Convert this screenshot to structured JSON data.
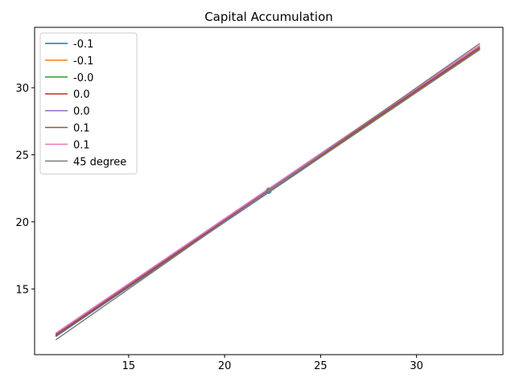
{
  "chart_data": {
    "type": "line",
    "title": "Capital Accumulation",
    "xlabel": "",
    "ylabel": "",
    "xlim": [
      10.1,
      34.5
    ],
    "ylim": [
      10.1,
      34.5
    ],
    "xticks": [
      15,
      20,
      25,
      30
    ],
    "yticks": [
      15,
      20,
      25,
      30
    ],
    "grid": false,
    "legend_position": "upper left",
    "series": [
      {
        "name": "-0.1",
        "color": "#1f77b4",
        "x": [
          11.2,
          33.3
        ],
        "y": [
          11.45,
          32.85
        ]
      },
      {
        "name": "-0.1",
        "color": "#ff7f0e",
        "x": [
          11.2,
          33.3
        ],
        "y": [
          11.5,
          32.9
        ]
      },
      {
        "name": "-0.0",
        "color": "#2ca02c",
        "x": [
          11.2,
          33.3
        ],
        "y": [
          11.55,
          32.95
        ]
      },
      {
        "name": "0.0",
        "color": "#d62728",
        "x": [
          11.2,
          33.3
        ],
        "y": [
          11.6,
          33.05
        ]
      },
      {
        "name": "0.0",
        "color": "#9467bd",
        "x": [
          11.2,
          33.3
        ],
        "y": [
          11.65,
          33.1
        ]
      },
      {
        "name": "0.1",
        "color": "#8c564b",
        "x": [
          11.2,
          33.3
        ],
        "y": [
          11.5,
          32.95
        ]
      },
      {
        "name": "0.1",
        "color": "#e377c2",
        "x": [
          11.2,
          33.3
        ],
        "y": [
          11.7,
          33.15
        ]
      },
      {
        "name": "45 degree",
        "color": "#7f7f7f",
        "x": [
          11.2,
          33.3
        ],
        "y": [
          11.2,
          33.3
        ]
      }
    ],
    "points": [
      {
        "x": 22.3,
        "y": 22.3,
        "color": "#1f77b4"
      },
      {
        "x": 22.3,
        "y": 22.35,
        "color": "#7f7f7f"
      }
    ]
  }
}
